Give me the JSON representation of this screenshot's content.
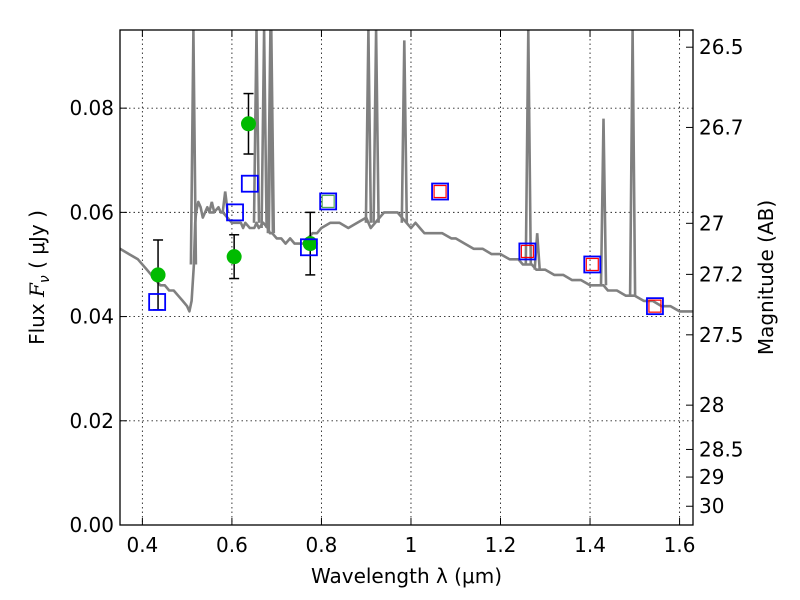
{
  "chart_data": {
    "type": "scatter",
    "title": "",
    "xlabel": "Wavelength  λ (μm)",
    "ylabel_left": {
      "pre": "Flux  ",
      "var": "F",
      "sub": "ν",
      "post": "  (  μJy  )"
    },
    "ylabel_right": "Magnitude (AB)",
    "xlim": [
      0.35,
      1.63
    ],
    "ylim": [
      0.0,
      0.095
    ],
    "grid": true,
    "x_ticks": [
      0.4,
      0.6,
      0.8,
      1.0,
      1.2,
      1.4,
      1.6
    ],
    "x_tick_labels": [
      "0.4",
      "0.6",
      "0.8",
      "1",
      "1.2",
      "1.4",
      "1.6"
    ],
    "y_ticks": [
      0.0,
      0.02,
      0.04,
      0.06,
      0.08
    ],
    "y_tick_labels": [
      "0.00",
      "0.02",
      "0.04",
      "0.06",
      "0.08"
    ],
    "right_ticks": [
      {
        "label": "26.5",
        "flux": 0.0917
      },
      {
        "label": "26.7",
        "flux": 0.0763
      },
      {
        "label": "27",
        "flux": 0.0579
      },
      {
        "label": "27.2",
        "flux": 0.0481
      },
      {
        "label": "27.5",
        "flux": 0.0365
      },
      {
        "label": "28",
        "flux": 0.023
      },
      {
        "label": "28.5",
        "flux": 0.0145
      },
      {
        "label": "29",
        "flux": 0.0092
      },
      {
        "label": "30",
        "flux": 0.0036
      }
    ],
    "series": [
      {
        "kind": "line",
        "color": "#808080",
        "x": [
          0.35,
          0.37,
          0.39,
          0.41,
          0.42,
          0.43,
          0.44,
          0.45,
          0.46,
          0.47,
          0.48,
          0.49,
          0.5,
          0.505,
          0.51,
          0.515,
          0.518,
          0.52,
          0.525,
          0.53,
          0.535,
          0.54,
          0.545,
          0.55,
          0.56,
          0.57,
          0.575,
          0.58,
          0.59,
          0.6,
          0.61,
          0.62,
          0.625,
          0.63,
          0.64,
          0.65,
          0.655,
          0.66,
          0.67,
          0.68,
          0.685,
          0.69,
          0.7,
          0.71,
          0.72,
          0.73,
          0.74,
          0.75,
          0.76,
          0.77,
          0.78,
          0.79,
          0.8,
          0.82,
          0.84,
          0.86,
          0.88,
          0.9,
          0.905,
          0.91,
          0.92,
          0.93,
          0.94,
          0.95,
          0.96,
          0.97,
          0.98,
          0.99,
          1.0,
          1.01,
          1.02,
          1.03,
          1.05,
          1.07,
          1.09,
          1.1,
          1.12,
          1.14,
          1.16,
          1.18,
          1.2,
          1.22,
          1.24,
          1.25,
          1.26,
          1.27,
          1.28,
          1.3,
          1.32,
          1.34,
          1.36,
          1.38,
          1.4,
          1.42,
          1.43,
          1.44,
          1.46,
          1.48,
          1.5,
          1.52,
          1.54,
          1.56,
          1.58,
          1.6,
          1.63
        ],
        "y": [
          0.053,
          0.052,
          0.051,
          0.049,
          0.048,
          0.047,
          0.046,
          0.046,
          0.045,
          0.045,
          0.044,
          0.043,
          0.042,
          0.041,
          0.043,
          0.05,
          0.058,
          0.06,
          0.062,
          0.061,
          0.059,
          0.06,
          0.061,
          0.06,
          0.06,
          0.061,
          0.06,
          0.06,
          0.059,
          0.058,
          0.058,
          0.058,
          0.057,
          0.058,
          0.057,
          0.057,
          0.058,
          0.057,
          0.058,
          0.057,
          0.056,
          0.056,
          0.055,
          0.055,
          0.054,
          0.055,
          0.054,
          0.054,
          0.054,
          0.055,
          0.056,
          0.056,
          0.057,
          0.058,
          0.058,
          0.057,
          0.058,
          0.059,
          0.058,
          0.057,
          0.058,
          0.059,
          0.06,
          0.06,
          0.06,
          0.06,
          0.059,
          0.058,
          0.057,
          0.058,
          0.057,
          0.056,
          0.056,
          0.056,
          0.055,
          0.055,
          0.054,
          0.053,
          0.053,
          0.052,
          0.052,
          0.051,
          0.051,
          0.05,
          0.05,
          0.05,
          0.049,
          0.049,
          0.048,
          0.048,
          0.047,
          0.047,
          0.046,
          0.046,
          0.046,
          0.045,
          0.045,
          0.044,
          0.044,
          0.043,
          0.043,
          0.042,
          0.042,
          0.041,
          0.041
        ]
      },
      {
        "kind": "emission",
        "color": "#808080",
        "x": [
          0.514,
          0.555,
          0.585,
          0.655,
          0.672,
          0.686,
          0.688,
          0.905,
          0.922,
          0.985,
          1.262,
          1.282,
          1.43,
          1.495
        ],
        "base": [
          0.05,
          0.06,
          0.06,
          0.058,
          0.057,
          0.056,
          0.056,
          0.058,
          0.058,
          0.058,
          0.05,
          0.049,
          0.046,
          0.044
        ],
        "peak": [
          0.095,
          0.062,
          0.064,
          0.095,
          0.095,
          0.095,
          0.095,
          0.095,
          0.095,
          0.093,
          0.095,
          0.056,
          0.078,
          0.095
        ]
      },
      {
        "kind": "points",
        "marker": "circle",
        "color": "#00bb00",
        "x": [
          0.435,
          0.605,
          0.637,
          0.775
        ],
        "y": [
          0.048,
          0.0515,
          0.077,
          0.054
        ],
        "err": [
          0.0067,
          0.0042,
          0.0058,
          0.006
        ]
      },
      {
        "kind": "points",
        "marker": "square",
        "color": "#ff0000",
        "x": [
          1.065,
          1.26,
          1.405,
          1.545
        ],
        "y": [
          0.064,
          0.0525,
          0.05,
          0.042
        ]
      },
      {
        "kind": "points",
        "marker": "square",
        "color": "#0000ff",
        "x": [
          0.433,
          0.607,
          0.64,
          0.772,
          0.815,
          1.065,
          1.26,
          1.405,
          1.545
        ],
        "y": [
          0.0428,
          0.06,
          0.0655,
          0.0533,
          0.0621,
          0.064,
          0.0525,
          0.05,
          0.042
        ]
      },
      {
        "kind": "points",
        "marker": "square",
        "color": "#55aa55",
        "x": [
          0.815
        ],
        "y": [
          0.0621
        ]
      }
    ]
  }
}
